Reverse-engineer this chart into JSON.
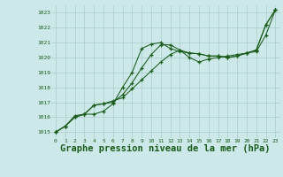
{
  "background_color": "#cce8e8",
  "grid_color": "#aacccc",
  "line_color": "#1a5c1a",
  "xlabel": "Graphe pression niveau de la mer (hPa)",
  "xlabel_fontsize": 7.5,
  "ylim": [
    1014.6,
    1023.5
  ],
  "xlim": [
    -0.5,
    23.5
  ],
  "yticks": [
    1015,
    1016,
    1017,
    1018,
    1019,
    1020,
    1021,
    1022,
    1023
  ],
  "xticks": [
    0,
    1,
    2,
    3,
    4,
    5,
    6,
    7,
    8,
    9,
    10,
    11,
    12,
    13,
    14,
    15,
    16,
    17,
    18,
    19,
    20,
    21,
    22,
    23
  ],
  "line1_x": [
    0,
    1,
    2,
    3,
    4,
    5,
    6,
    7,
    8,
    9,
    10,
    11,
    12,
    13,
    14,
    15,
    16,
    17,
    18,
    19,
    20,
    21,
    22,
    23
  ],
  "line1_y": [
    1015.0,
    1015.4,
    1016.0,
    1016.2,
    1016.8,
    1016.9,
    1017.0,
    1017.5,
    1018.3,
    1019.3,
    1020.2,
    1020.85,
    1020.85,
    1020.5,
    1020.3,
    1020.25,
    1020.1,
    1020.1,
    1020.0,
    1020.1,
    1020.3,
    1020.5,
    1022.2,
    1023.2
  ],
  "line2_x": [
    0,
    1,
    2,
    3,
    4,
    5,
    6,
    7,
    8,
    9,
    10,
    11,
    12,
    13,
    14,
    15,
    16,
    17,
    18,
    19,
    20,
    21,
    22,
    23
  ],
  "line2_y": [
    1015.0,
    1015.4,
    1016.0,
    1016.2,
    1016.8,
    1016.9,
    1017.1,
    1017.3,
    1017.9,
    1018.5,
    1019.1,
    1019.7,
    1020.2,
    1020.5,
    1020.0,
    1019.7,
    1019.9,
    1020.0,
    1020.1,
    1020.2,
    1020.3,
    1020.4,
    1021.5,
    1023.2
  ],
  "line3_x": [
    0,
    1,
    2,
    3,
    4,
    5,
    6,
    7,
    8,
    9,
    10,
    11,
    12,
    13,
    14,
    15,
    16,
    17,
    18,
    19,
    20,
    21,
    22,
    23
  ],
  "line3_y": [
    1015.0,
    1015.4,
    1016.1,
    1016.2,
    1016.2,
    1016.4,
    1016.9,
    1018.0,
    1019.0,
    1020.6,
    1020.9,
    1021.0,
    1020.6,
    1020.4,
    1020.3,
    1020.25,
    1020.1,
    1020.1,
    1020.0,
    1020.1,
    1020.3,
    1020.5,
    1022.2,
    1023.2
  ]
}
